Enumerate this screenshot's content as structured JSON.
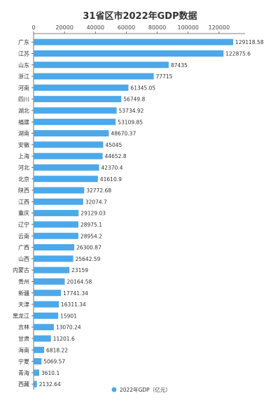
{
  "chart_data": {
    "type": "bar",
    "orientation": "horizontal",
    "title": "31省区市2022年GDP数据",
    "xlabel": "",
    "ylabel": "",
    "xlim": [
      0,
      130000
    ],
    "xticks": [
      "0",
      "20000",
      "40000",
      "60000",
      "80000",
      "100000",
      "120000"
    ],
    "grid": false,
    "legend_position": "bottom",
    "color": "#4da8ea",
    "categories": [
      "广东",
      "江苏",
      "山东",
      "浙江",
      "河南",
      "四川",
      "湖北",
      "福建",
      "湖南",
      "安徽",
      "上海",
      "河北",
      "北京",
      "陕西",
      "江西",
      "重庆",
      "辽宁",
      "云南",
      "广西",
      "山西",
      "内蒙古",
      "贵州",
      "新疆",
      "天津",
      "黑龙江",
      "吉林",
      "甘肃",
      "海南",
      "宁夏",
      "青海",
      "西藏"
    ],
    "series": [
      {
        "name": "2022年GDP（亿元）",
        "values": [
          129118.58,
          122875.6,
          87435,
          77715,
          61345.05,
          56749.8,
          53734.92,
          53109.85,
          48670.37,
          45045,
          44652.8,
          42370.4,
          41610.9,
          32772.68,
          32074.7,
          29129.03,
          28975.1,
          28954.2,
          26300.87,
          25642.59,
          23159,
          20164.58,
          17741.34,
          16311.34,
          15901,
          13070.24,
          11201.6,
          6818.22,
          5069.57,
          3610.1,
          2132.64
        ],
        "labels": [
          "129118.58",
          "122875.6",
          "87435",
          "77715",
          "61345.05",
          "56749.8",
          "53734.92",
          "53109.85",
          "48670.37",
          "45045",
          "44652.8",
          "42370.4",
          "41610.9",
          "32772.68",
          "32074.7",
          "29129.03",
          "28975.1",
          "28954.2",
          "26300.87",
          "25642.59",
          "23159",
          "20164.58",
          "17741.34",
          "16311.34",
          "15901",
          "13070.24",
          "11201.6",
          "6818.22",
          "5069.57",
          "3610.1",
          "2132.64"
        ]
      }
    ]
  }
}
